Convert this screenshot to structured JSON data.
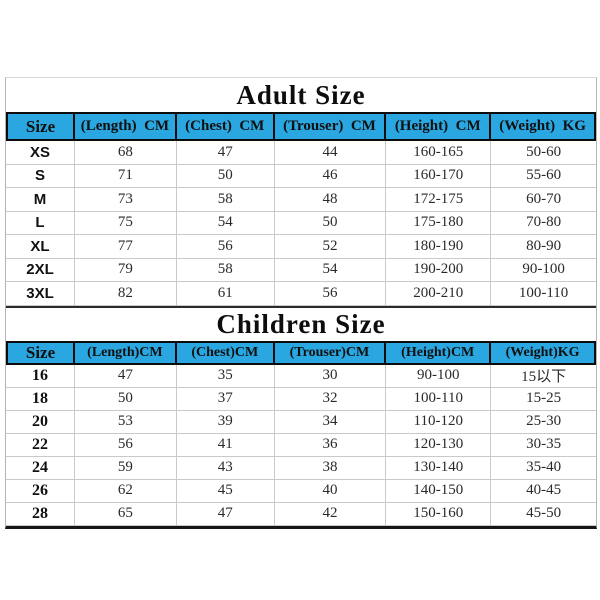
{
  "page": {
    "background": "#ffffff"
  },
  "colors": {
    "header_bg": "#2aa6e0",
    "header_border": "#0c0c0c",
    "grid_line": "#c9c9c9",
    "outer_bottom_border": "#151515",
    "title_text": "#0d0d0d",
    "data_text": "#2a2a2a"
  },
  "adult": {
    "title": "Adult Size",
    "columns": [
      "Size",
      "(Length)  CM",
      "(Chest)  CM",
      "(Trouser)  CM",
      "(Height)  CM",
      "(Weight)  KG"
    ],
    "rows": [
      [
        "XS",
        "68",
        "47",
        "44",
        "160-165",
        "50-60"
      ],
      [
        "S",
        "71",
        "50",
        "46",
        "160-170",
        "55-60"
      ],
      [
        "M",
        "73",
        "58",
        "48",
        "172-175",
        "60-70"
      ],
      [
        "L",
        "75",
        "54",
        "50",
        "175-180",
        "70-80"
      ],
      [
        "XL",
        "77",
        "56",
        "52",
        "180-190",
        "80-90"
      ],
      [
        "2XL",
        "79",
        "58",
        "54",
        "190-200",
        "90-100"
      ],
      [
        "3XL",
        "82",
        "61",
        "56",
        "200-210",
        "100-110"
      ]
    ]
  },
  "children": {
    "title": "Children Size",
    "columns": [
      "Size",
      "(Length)CM",
      "(Chest)CM",
      "(Trouser)CM",
      "(Height)CM",
      "(Weight)KG"
    ],
    "rows": [
      [
        "16",
        "47",
        "35",
        "30",
        "90-100",
        "15以下"
      ],
      [
        "18",
        "50",
        "37",
        "32",
        "100-110",
        "15-25"
      ],
      [
        "20",
        "53",
        "39",
        "34",
        "110-120",
        "25-30"
      ],
      [
        "22",
        "56",
        "41",
        "36",
        "120-130",
        "30-35"
      ],
      [
        "24",
        "59",
        "43",
        "38",
        "130-140",
        "35-40"
      ],
      [
        "26",
        "62",
        "45",
        "40",
        "140-150",
        "40-45"
      ],
      [
        "28",
        "65",
        "47",
        "42",
        "150-160",
        "45-50"
      ]
    ]
  }
}
